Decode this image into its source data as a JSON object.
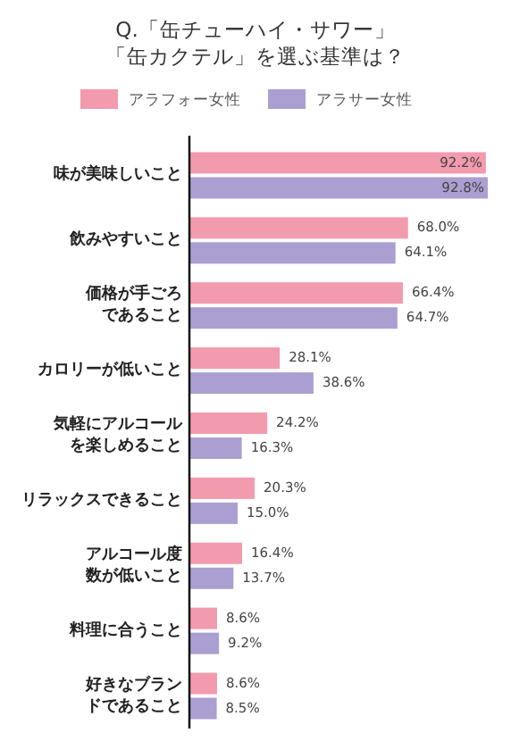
{
  "chart_data": {
    "type": "bar",
    "orientation": "horizontal",
    "title": "Q.「缶チューハイ・サワー」「缶カクテル」を選ぶ基準は？",
    "categories": [
      "味が美味しいこと",
      "飲みやすいこと",
      "価格が手ごろであること",
      "カロリーが低いこと",
      "気軽にアルコールを楽しめること",
      "リラックスできること",
      "アルコール度数が低いこと",
      "料理に合うこと",
      "好きなブランドであること"
    ],
    "series": [
      {
        "name": "アラフォー女性",
        "color": "#f29aae",
        "values": [
          92.2,
          68.0,
          66.4,
          28.1,
          24.2,
          20.3,
          16.4,
          8.6,
          8.6
        ],
        "value_labels": [
          "92.2%",
          "68.0%",
          "66.4%",
          "28.1%",
          "24.2%",
          "20.3%",
          "16.4%",
          "8.6%",
          "8.6%"
        ]
      },
      {
        "name": "アラサー女性",
        "color": "#ab9fd1",
        "values": [
          92.8,
          64.1,
          64.7,
          38.6,
          16.3,
          15.0,
          13.7,
          9.2,
          8.5
        ],
        "value_labels": [
          "92.8%",
          "64.1%",
          "64.7%",
          "38.6%",
          "16.3%",
          "15.0%",
          "13.7%",
          "9.2%",
          "8.5%"
        ]
      }
    ],
    "legend": "top"
  }
}
